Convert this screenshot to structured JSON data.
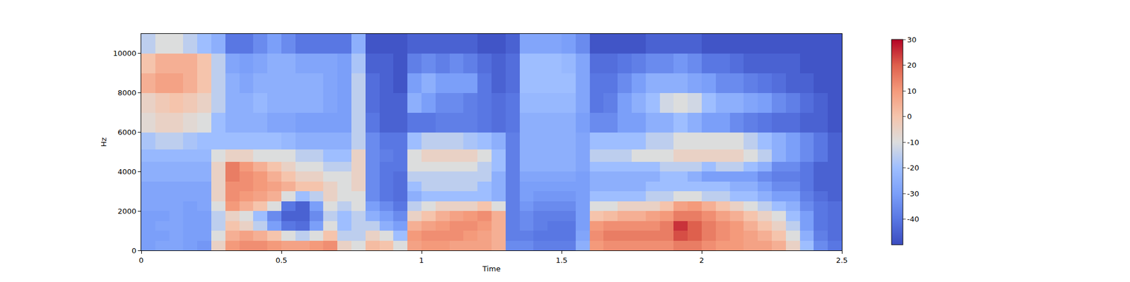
{
  "chart_data": {
    "type": "heatmap",
    "xlabel": "Time",
    "ylabel": "Hz",
    "xlim": [
      0,
      2.5
    ],
    "xticks": [
      0,
      0.5,
      1,
      1.5,
      2,
      2.5
    ],
    "ylim": [
      0,
      11000
    ],
    "yticks": [
      0,
      2000,
      4000,
      6000,
      8000,
      10000
    ],
    "colorbar_range": [
      -50,
      30
    ],
    "colorbar_ticks": [
      -40,
      -30,
      -20,
      -10,
      0,
      10,
      20,
      30
    ],
    "x": [
      0.025,
      0.075,
      0.125,
      0.175,
      0.225,
      0.275,
      0.325,
      0.375,
      0.425,
      0.475,
      0.525,
      0.575,
      0.625,
      0.675,
      0.725,
      0.775,
      0.825,
      0.875,
      0.925,
      0.975,
      1.025,
      1.075,
      1.125,
      1.175,
      1.225,
      1.275,
      1.325,
      1.375,
      1.425,
      1.475,
      1.525,
      1.575,
      1.625,
      1.675,
      1.725,
      1.775,
      1.825,
      1.875,
      1.925,
      1.975,
      2.025,
      2.075,
      2.125,
      2.175,
      2.225,
      2.275,
      2.325,
      2.375,
      2.425,
      2.475
    ],
    "y": [
      250,
      750,
      1250,
      1750,
      2250,
      2750,
      3250,
      3750,
      4250,
      4750,
      5500,
      6500,
      7500,
      8500,
      9500,
      10500
    ],
    "cells": [
      [
        -30,
        -28,
        -28,
        -30,
        -32,
        -5,
        10,
        12,
        12,
        10,
        8,
        8,
        10,
        12,
        -5,
        -10,
        2,
        0,
        -10,
        8,
        10,
        10,
        8,
        8,
        8,
        5,
        -35,
        -35,
        -38,
        -38,
        -38,
        -25,
        10,
        12,
        12,
        12,
        12,
        12,
        15,
        15,
        12,
        10,
        10,
        8,
        8,
        5,
        -5,
        -20,
        -35,
        -40
      ],
      [
        -30,
        -30,
        -28,
        -30,
        -30,
        -10,
        5,
        8,
        5,
        0,
        -10,
        -15,
        -10,
        0,
        -15,
        -15,
        -5,
        -10,
        -20,
        10,
        12,
        12,
        12,
        10,
        8,
        5,
        -38,
        -38,
        -40,
        -40,
        -40,
        -28,
        12,
        15,
        15,
        15,
        15,
        15,
        22,
        20,
        15,
        12,
        10,
        8,
        5,
        0,
        -10,
        -25,
        -38,
        -42
      ],
      [
        -30,
        -28,
        -28,
        -30,
        -30,
        -15,
        0,
        -5,
        -15,
        -30,
        -40,
        -42,
        -30,
        -10,
        -20,
        -15,
        -15,
        -25,
        -30,
        5,
        8,
        10,
        12,
        12,
        10,
        5,
        -38,
        -35,
        -38,
        -40,
        -40,
        -30,
        10,
        12,
        12,
        12,
        12,
        15,
        25,
        20,
        15,
        12,
        10,
        5,
        0,
        -5,
        -15,
        -30,
        -40,
        -42
      ],
      [
        -30,
        -30,
        -28,
        -30,
        -30,
        -15,
        -5,
        -10,
        -20,
        -35,
        -45,
        -45,
        -35,
        -15,
        -20,
        -15,
        -25,
        -30,
        -35,
        -5,
        0,
        5,
        8,
        10,
        12,
        5,
        -38,
        -35,
        -38,
        -38,
        -38,
        -30,
        0,
        2,
        5,
        5,
        8,
        10,
        15,
        15,
        12,
        8,
        5,
        0,
        -5,
        -10,
        -20,
        -30,
        -40,
        -42
      ],
      [
        -28,
        -28,
        -28,
        -30,
        -28,
        -10,
        10,
        5,
        0,
        -10,
        -40,
        -45,
        -30,
        -10,
        -15,
        -10,
        -30,
        -35,
        -40,
        -15,
        -10,
        -5,
        -5,
        -5,
        0,
        -10,
        -38,
        -32,
        -35,
        -35,
        -35,
        -30,
        -10,
        -10,
        -5,
        -5,
        -5,
        0,
        8,
        10,
        5,
        0,
        -5,
        -10,
        -15,
        -20,
        -25,
        -35,
        -40,
        -42
      ],
      [
        -28,
        -28,
        -28,
        -28,
        -28,
        -5,
        12,
        10,
        8,
        5,
        -10,
        -20,
        -15,
        -5,
        -10,
        -10,
        -35,
        -40,
        -42,
        -25,
        -20,
        -20,
        -20,
        -20,
        -20,
        -25,
        -38,
        -30,
        -32,
        -32,
        -32,
        -30,
        -20,
        -20,
        -20,
        -20,
        -15,
        -15,
        -10,
        -10,
        -15,
        -15,
        -20,
        -20,
        -25,
        -30,
        -30,
        -38,
        -42,
        -45
      ],
      [
        -28,
        -28,
        -28,
        -28,
        -28,
        -5,
        12,
        12,
        10,
        8,
        5,
        0,
        0,
        -5,
        -10,
        -5,
        -35,
        -40,
        -42,
        -20,
        -15,
        -15,
        -15,
        -15,
        -20,
        -25,
        -38,
        -30,
        -30,
        -30,
        -30,
        -30,
        -25,
        -25,
        -25,
        -25,
        -20,
        -20,
        -20,
        -20,
        -20,
        -20,
        -25,
        -25,
        -30,
        -35,
        -35,
        -40,
        -45,
        -45
      ],
      [
        -25,
        -25,
        -25,
        -25,
        -25,
        -5,
        15,
        12,
        10,
        5,
        0,
        -5,
        -5,
        -10,
        -10,
        -5,
        -35,
        -40,
        -42,
        -15,
        -15,
        -15,
        -15,
        -15,
        -15,
        -25,
        -38,
        -28,
        -28,
        -28,
        -28,
        -30,
        -25,
        -25,
        -25,
        -25,
        -25,
        -20,
        -20,
        -25,
        -30,
        -30,
        -30,
        -30,
        -35,
        -38,
        -38,
        -40,
        -45,
        -45
      ],
      [
        -25,
        -25,
        -25,
        -25,
        -25,
        -5,
        15,
        10,
        5,
        0,
        -5,
        -10,
        -10,
        -15,
        -15,
        -5,
        -35,
        -40,
        -40,
        -10,
        -10,
        -10,
        -10,
        -10,
        -15,
        -20,
        -38,
        -25,
        -25,
        -25,
        -25,
        -28,
        -20,
        -20,
        -20,
        -20,
        -20,
        -15,
        -15,
        -15,
        -20,
        -15,
        -15,
        -20,
        -25,
        -35,
        -35,
        -40,
        -45,
        -45
      ],
      [
        -22,
        -22,
        -22,
        -22,
        -22,
        -10,
        -5,
        -5,
        -10,
        -10,
        -10,
        -15,
        -15,
        -20,
        -20,
        -5,
        -35,
        -38,
        -40,
        -10,
        -5,
        -5,
        -5,
        -5,
        -10,
        -20,
        -38,
        -25,
        -25,
        -25,
        -25,
        -28,
        -15,
        -15,
        -15,
        -10,
        -10,
        -10,
        -5,
        -5,
        -5,
        -5,
        -5,
        -10,
        -15,
        -25,
        -30,
        -35,
        -40,
        -45
      ],
      [
        -18,
        -15,
        -15,
        -18,
        -20,
        -20,
        -20,
        -20,
        -20,
        -20,
        -22,
        -25,
        -25,
        -25,
        -25,
        -15,
        -35,
        -40,
        -40,
        -20,
        -15,
        -15,
        -15,
        -18,
        -20,
        -25,
        -38,
        -25,
        -25,
        -25,
        -25,
        -28,
        -20,
        -20,
        -20,
        -20,
        -15,
        -15,
        -10,
        -10,
        -10,
        -10,
        -10,
        -15,
        -20,
        -25,
        -30,
        -35,
        -40,
        -45
      ],
      [
        -8,
        -5,
        -5,
        -8,
        -10,
        -20,
        -25,
        -25,
        -25,
        -28,
        -28,
        -30,
        -30,
        -30,
        -30,
        -15,
        -40,
        -45,
        -45,
        -40,
        -40,
        -38,
        -38,
        -38,
        -40,
        -42,
        -40,
        -25,
        -25,
        -25,
        -25,
        -30,
        -35,
        -35,
        -30,
        -30,
        -25,
        -25,
        -20,
        -25,
        -30,
        -30,
        -35,
        -38,
        -40,
        -42,
        -42,
        -45,
        -45,
        -48
      ],
      [
        -5,
        -2,
        0,
        -2,
        -5,
        -15,
        -25,
        -25,
        -22,
        -25,
        -25,
        -25,
        -25,
        -28,
        -30,
        -15,
        -42,
        -45,
        -45,
        -25,
        -30,
        -35,
        -35,
        -38,
        -40,
        -42,
        -40,
        -22,
        -22,
        -22,
        -22,
        -28,
        -40,
        -38,
        -30,
        -25,
        -20,
        -12,
        -10,
        -12,
        -20,
        -25,
        -25,
        -28,
        -30,
        -35,
        -38,
        -42,
        -45,
        -48
      ],
      [
        5,
        8,
        8,
        5,
        0,
        -15,
        -25,
        -28,
        -25,
        -25,
        -25,
        -25,
        -25,
        -28,
        -30,
        -15,
        -42,
        -45,
        -48,
        -30,
        -25,
        -30,
        -30,
        -30,
        -40,
        -45,
        -42,
        -20,
        -20,
        -20,
        -20,
        -28,
        -40,
        -40,
        -35,
        -30,
        -25,
        -25,
        -25,
        -28,
        -30,
        -35,
        -35,
        -38,
        -40,
        -42,
        -45,
        -45,
        -48,
        -48
      ],
      [
        0,
        5,
        5,
        5,
        0,
        -15,
        -28,
        -30,
        -28,
        -25,
        -25,
        -28,
        -28,
        -28,
        -30,
        -18,
        -45,
        -45,
        -48,
        -38,
        -35,
        -38,
        -35,
        -38,
        -42,
        -45,
        -42,
        -20,
        -20,
        -20,
        -22,
        -28,
        -42,
        -42,
        -40,
        -38,
        -35,
        -35,
        -32,
        -35,
        -40,
        -40,
        -42,
        -45,
        -45,
        -45,
        -45,
        -48,
        -48,
        -48
      ],
      [
        -15,
        -10,
        -10,
        -15,
        -20,
        -25,
        -40,
        -40,
        -35,
        -30,
        -35,
        -40,
        -40,
        -40,
        -40,
        -25,
        -48,
        -48,
        -48,
        -45,
        -45,
        -45,
        -45,
        -45,
        -48,
        -48,
        -45,
        -28,
        -28,
        -28,
        -30,
        -35,
        -48,
        -48,
        -48,
        -48,
        -45,
        -45,
        -45,
        -45,
        -48,
        -48,
        -48,
        -48,
        -48,
        -48,
        -48,
        -48,
        -48,
        -48
      ]
    ]
  }
}
